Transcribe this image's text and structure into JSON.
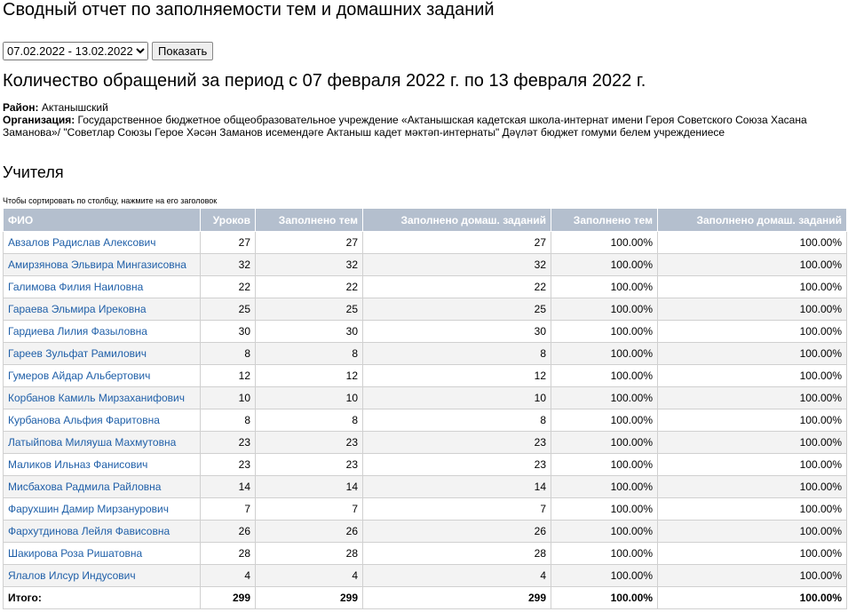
{
  "header": {
    "title": "Сводный отчет по заполняемости тем и домашних заданий"
  },
  "controls": {
    "period": "07.02.2022 - 13.02.2022",
    "button": "Показать"
  },
  "report": {
    "heading": "Количество обращений за период с 07 февраля 2022 г. по 13 февраля 2022 г.",
    "district_label": "Район:",
    "district": "Актанышский",
    "org_label": "Организация:",
    "org": "Государственное бюджетное общеобразовательное учреждение «Актанышская кадетская школа-интернат имени Героя Советского Союза Хасана Заманова»/ \"Советлар Союзы Герое Хәсән Заманов исемендәге Актаныш кадет мәктәп-интернаты\" Дәүләт бюджет гомуми белем учреждениесе"
  },
  "section": {
    "title": "Учителя",
    "hint": "Чтобы сортировать по столбцу, нажмите на его заголовок"
  },
  "table": {
    "columns": [
      "ФИО",
      "Уроков",
      "Заполнено тем",
      "Заполнено домаш. заданий",
      "Заполнено тем",
      "Заполнено домаш. заданий"
    ],
    "rows": [
      [
        "Авзалов Радислав Алексович",
        27,
        27,
        27,
        "100.00%",
        "100.00%"
      ],
      [
        "Амирзянова Эльвира Мингазисовна",
        32,
        32,
        32,
        "100.00%",
        "100.00%"
      ],
      [
        "Галимова Филия Наиловна",
        22,
        22,
        22,
        "100.00%",
        "100.00%"
      ],
      [
        "Гараева Эльмира Ирековна",
        25,
        25,
        25,
        "100.00%",
        "100.00%"
      ],
      [
        "Гардиева Лилия Фазыловна",
        30,
        30,
        30,
        "100.00%",
        "100.00%"
      ],
      [
        "Гареев Зульфат Рамилович",
        8,
        8,
        8,
        "100.00%",
        "100.00%"
      ],
      [
        "Гумеров Айдар Альбертович",
        12,
        12,
        12,
        "100.00%",
        "100.00%"
      ],
      [
        "Корбанов Камиль Мирзаханифович",
        10,
        10,
        10,
        "100.00%",
        "100.00%"
      ],
      [
        "Курбанова Альфия Фаритовна",
        8,
        8,
        8,
        "100.00%",
        "100.00%"
      ],
      [
        "Латыйпова Миляуша Махмутовна",
        23,
        23,
        23,
        "100.00%",
        "100.00%"
      ],
      [
        "Маликов Ильназ Фанисович",
        23,
        23,
        23,
        "100.00%",
        "100.00%"
      ],
      [
        "Мисбахова Радмила Райловна",
        14,
        14,
        14,
        "100.00%",
        "100.00%"
      ],
      [
        "Фарухшин Дамир Мирзанурович",
        7,
        7,
        7,
        "100.00%",
        "100.00%"
      ],
      [
        "Фархутдинова Лейля Фависовна",
        26,
        26,
        26,
        "100.00%",
        "100.00%"
      ],
      [
        "Шакирова Роза Ришатовна",
        28,
        28,
        28,
        "100.00%",
        "100.00%"
      ],
      [
        "Ялалов Илсур Индусович",
        4,
        4,
        4,
        "100.00%",
        "100.00%"
      ]
    ],
    "total": [
      "Итого:",
      299,
      299,
      299,
      "100.00%",
      "100.00%"
    ]
  }
}
